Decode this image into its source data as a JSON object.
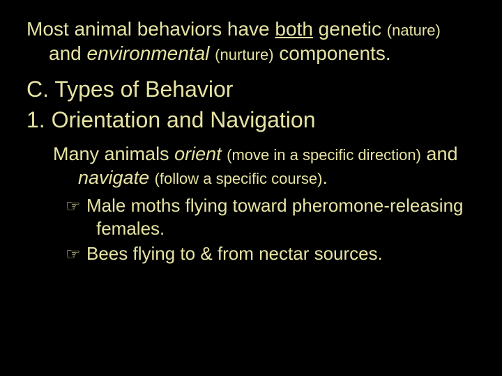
{
  "colors": {
    "background": "#000000",
    "text": "#e6e3a3"
  },
  "typography": {
    "family": "Comic Sans MS",
    "body_size_pt": 28,
    "small_size_pt": 22,
    "heading_size_pt": 32,
    "bullet_size_pt": 26
  },
  "para1": {
    "t1": "Most animal behaviors have ",
    "t2_under": "both",
    "t3": " genetic ",
    "t4_small": "(nature)",
    "t5": " and ",
    "t6_ital": "environmental",
    "t7": " ",
    "t8_small": "(nurture)",
    "t9": " components."
  },
  "section": {
    "head": "C. Types of Behavior",
    "sub": "1. Orientation and Navigation"
  },
  "para2": {
    "t1": "Many animals ",
    "t2_ital": "orient",
    "t3": " ",
    "t4_small": "(move in a specific direction)",
    "t5": " and ",
    "t6_ital": "navigate",
    "t7": " ",
    "t8_small": "(follow a specific course)",
    "t9": "."
  },
  "bullets": {
    "marker": "☞",
    "items": [
      "Male moths flying toward pheromone-releasing females.",
      "Bees flying to & from nectar sources."
    ]
  }
}
